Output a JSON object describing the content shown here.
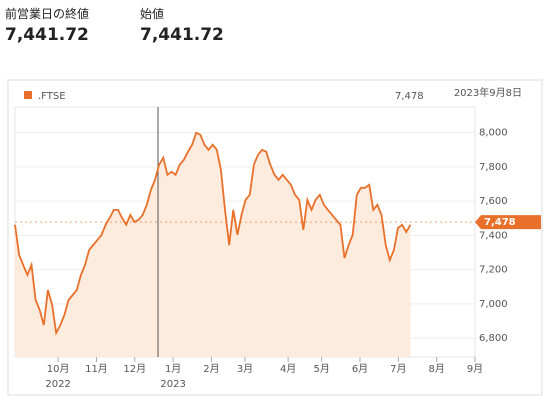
{
  "header": {
    "close_label": "前営業日の終値",
    "close_value": "7,441.72",
    "open_label": "始値",
    "open_value": "7,441.72"
  },
  "chart_data": {
    "type": "area",
    "series": [
      {
        "name": ".FTSE",
        "color": "#e8702a",
        "values": [
          7462,
          7286,
          7227,
          7169,
          7227,
          7023,
          6964,
          6877,
          7081,
          6994,
          6830,
          6877,
          6935,
          7023,
          7052,
          7081,
          7169,
          7227,
          7315,
          7344,
          7374,
          7403,
          7462,
          7502,
          7549,
          7549,
          7502,
          7462,
          7520,
          7479,
          7491,
          7520,
          7579,
          7666,
          7725,
          7813,
          7854,
          7754,
          7772,
          7754,
          7813,
          7842,
          7889,
          7930,
          8000,
          7988,
          7930,
          7900,
          7930,
          7900,
          7783,
          7549,
          7344,
          7549,
          7403,
          7520,
          7608,
          7637,
          7813,
          7871,
          7900,
          7889,
          7813,
          7754,
          7725,
          7754,
          7725,
          7696,
          7637,
          7608,
          7432,
          7608,
          7549,
          7608,
          7637,
          7579,
          7549,
          7520,
          7491,
          7462,
          7268,
          7344,
          7403,
          7637,
          7678,
          7678,
          7696,
          7549,
          7579,
          7520,
          7344,
          7256,
          7315,
          7444,
          7462,
          7420,
          7462
        ]
      }
    ],
    "last": {
      "value": 7478,
      "label": "7,478"
    },
    "date": "2023年9月8日",
    "xlim": [
      0,
      96
    ],
    "ylim": [
      6690,
      8150
    ],
    "yticks": [
      {
        "value": 6800,
        "label": "6,800"
      },
      {
        "value": 7000,
        "label": "7,000"
      },
      {
        "value": 7200,
        "label": "7,200"
      },
      {
        "value": 7400,
        "label": "7,400"
      },
      {
        "value": 7600,
        "label": "7,600"
      },
      {
        "value": 7800,
        "label": "7,800"
      },
      {
        "value": 8000,
        "label": "8,000"
      }
    ],
    "xticks": [
      {
        "value": 9,
        "label": "10月"
      },
      {
        "value": 17,
        "label": "11月"
      },
      {
        "value": 25,
        "label": "12月"
      },
      {
        "value": 33,
        "label": "1月"
      },
      {
        "value": 41,
        "label": "2月"
      },
      {
        "value": 48,
        "label": "3月"
      },
      {
        "value": 57,
        "label": "4月"
      },
      {
        "value": 64,
        "label": "5月"
      },
      {
        "value": 72,
        "label": "6月"
      },
      {
        "value": 80,
        "label": "7月"
      },
      {
        "value": 88,
        "label": "8月"
      },
      {
        "value": 96,
        "label": "9月"
      }
    ],
    "year_labels": [
      {
        "value": 9,
        "label": "2022"
      },
      {
        "value": 33,
        "label": "2023"
      }
    ],
    "grid": true
  }
}
